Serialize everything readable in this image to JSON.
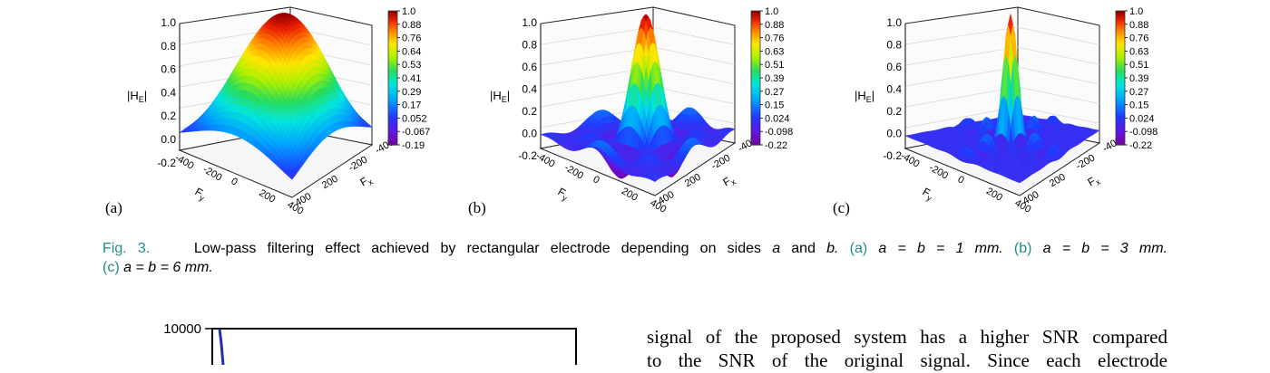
{
  "panels": [
    {
      "label": "(a)",
      "zlabel": "|H",
      "zsub": "E",
      "zsuffix": "|",
      "zticks": [
        "1.0",
        "0.8",
        "0.6",
        "0.4",
        "0.2",
        "0.0",
        "-0.2"
      ],
      "colorbar": [
        "1.0",
        "0.88",
        "0.76",
        "0.64",
        "0.53",
        "0.41",
        "0.29",
        "0.17",
        "0.052",
        "-0.067",
        "-0.19"
      ],
      "yticks": [
        "-400",
        "-200",
        "0",
        "200",
        "400"
      ],
      "xticks": [
        "400",
        "200",
        "-200",
        "-400"
      ],
      "ylabel": "F",
      "ysub": "y",
      "xlabel": "F",
      "xsub": "x"
    },
    {
      "label": "(b)",
      "zlabel": "|H",
      "zsub": "E",
      "zsuffix": "|",
      "zticks": [
        "1.0",
        "0.8",
        "0.6",
        "0.4",
        "0.2",
        "0.0",
        "-0.2"
      ],
      "colorbar": [
        "1.0",
        "0.88",
        "0.76",
        "0.63",
        "0.51",
        "0.39",
        "0.27",
        "0.15",
        "0.024",
        "-0.098",
        "-0.22"
      ],
      "yticks": [
        "-400",
        "-200",
        "0",
        "200",
        "400"
      ],
      "xticks": [
        "400",
        "200",
        "-200",
        "-400"
      ],
      "ylabel": "F",
      "ysub": "y",
      "xlabel": "F",
      "xsub": "x"
    },
    {
      "label": "(c)",
      "zlabel": "|H",
      "zsub": "E",
      "zsuffix": "|",
      "zticks": [
        "1.0",
        "0.8",
        "0.6",
        "0.4",
        "0.2",
        "0.0",
        "-0.2"
      ],
      "colorbar": [
        "1.0",
        "0.88",
        "0.76",
        "0.63",
        "0.51",
        "0.39",
        "0.27",
        "0.15",
        "0.024",
        "-0.098",
        "-0.22"
      ],
      "yticks": [
        "-400",
        "-200",
        "0",
        "200",
        "400"
      ],
      "xticks": [
        "400",
        "200",
        "-200",
        "-400"
      ],
      "ylabel": "F",
      "ysub": "y",
      "xlabel": "F",
      "xsub": "x"
    }
  ],
  "caption": {
    "fig": "Fig. 3.",
    "text1": "Low-pass filtering effect achieved by rectangular electrode depending on sides",
    "a": "a",
    "and": "and",
    "b": "b.",
    "pa": "(a)",
    "eq_a": "a = b = 1 mm.",
    "pb": "(b)",
    "eq_b": "a = b = 3 mm.",
    "pc": "(c)",
    "eq_c": "a = b = 6 mm."
  },
  "bottom_chart": {
    "ytick_top": "10000"
  },
  "body_text": {
    "line1": "signal of the proposed system has a higher SNR compared",
    "line2": "to the SNR of the original signal. Since each electrode"
  },
  "colors": {
    "teal": "#1f8c8a",
    "curve": "#1f2fb0"
  }
}
